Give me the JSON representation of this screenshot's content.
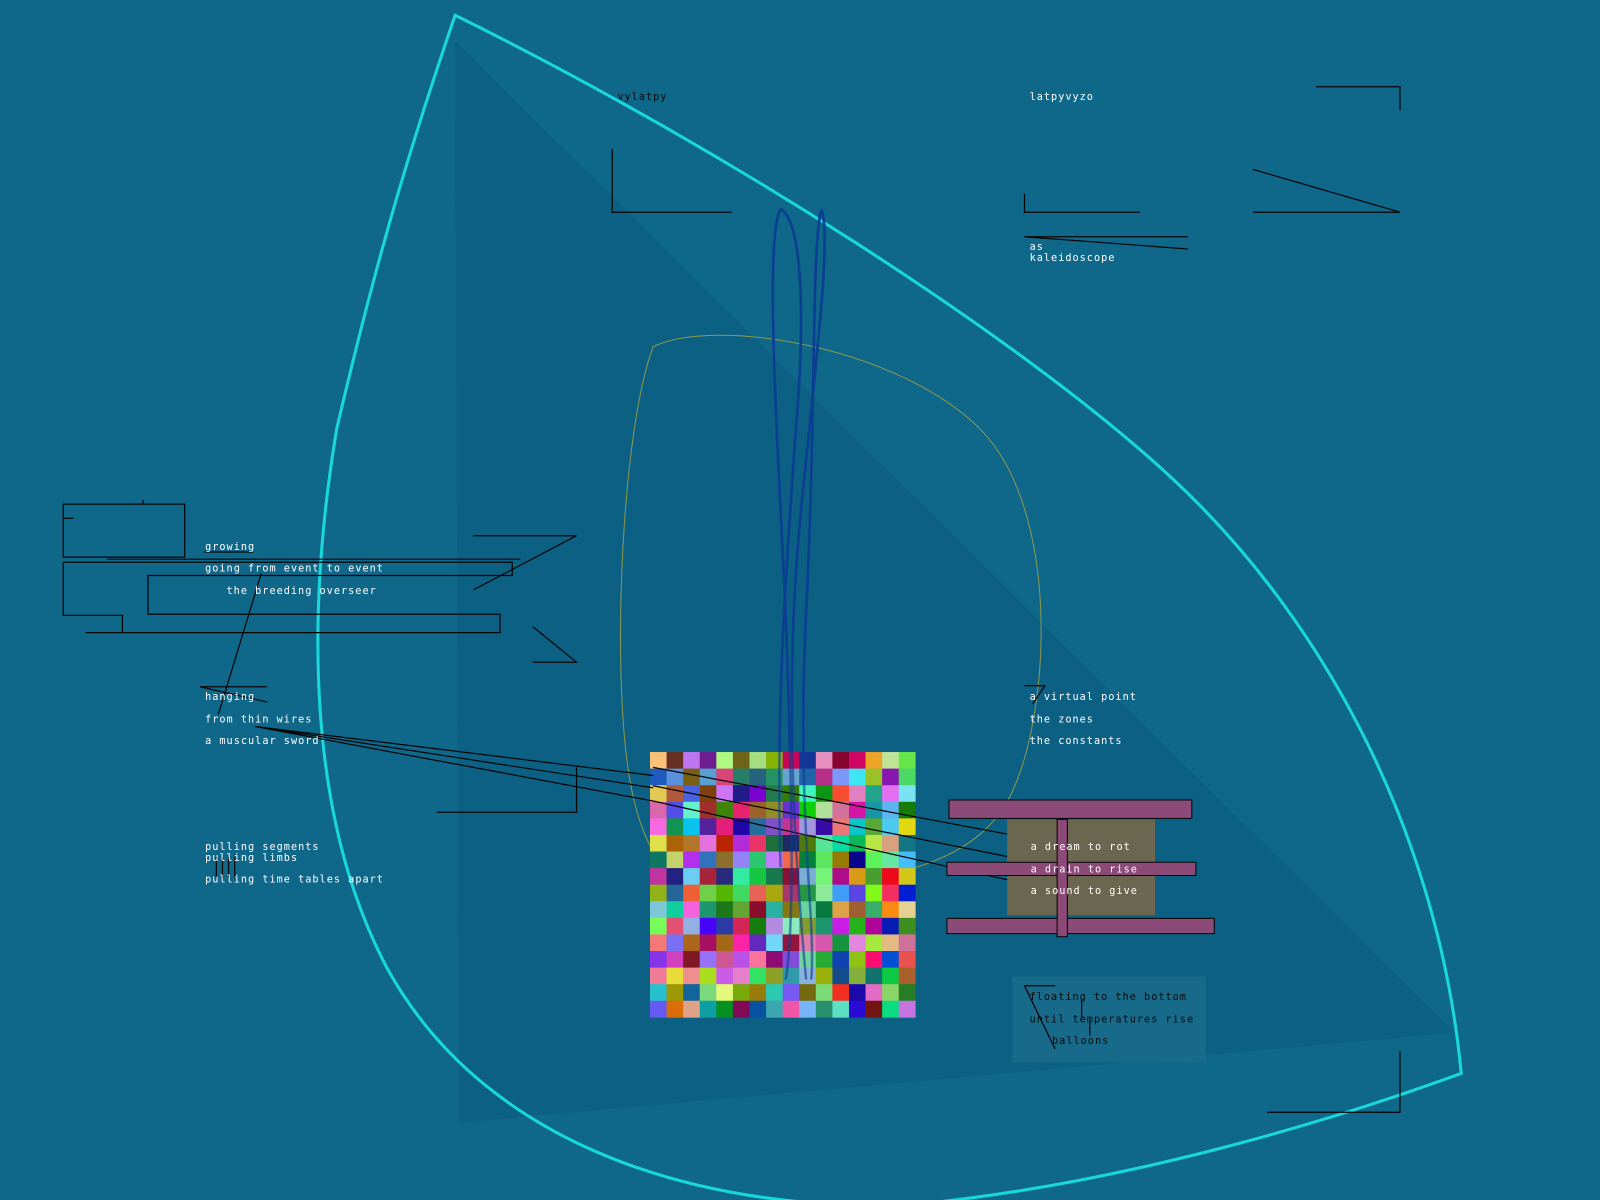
{
  "colors": {
    "background": "#0f6789",
    "inner_panel": "#0c5f84",
    "cyan_curve": "#19d8dc",
    "olive_curve": "#8a9a50",
    "blue_loops": "#0b3f92",
    "magenta_bars": "#8c4a78",
    "khaki_panel": "#6b6650"
  },
  "texts": {
    "top_left": "vylatpy",
    "top_right": "latpyvyzo",
    "kaleidoscope_1": "as",
    "kaleidoscope_2": "kaleidoscope",
    "growing": "growing",
    "going": "going from event to event",
    "breeding": "the breeding overseer",
    "hanging": "hanging",
    "wires": "from thin wires",
    "sword": "a muscular sword",
    "segments": "pulling segments",
    "limbs": "pulling limbs",
    "timetables": "pulling time tables apart",
    "virtual": "a virtual point",
    "zones": "the zones",
    "constants": "the constants",
    "mid_1": "a dream to rot",
    "mid_2": "a drain to rise",
    "mid_3": "a sound to give",
    "floating": "floating to the bottom",
    "until": "until temperatures rise",
    "balloons": "balloons"
  }
}
